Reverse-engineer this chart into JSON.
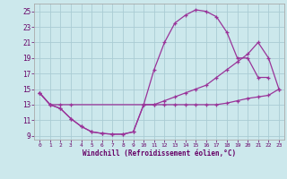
{
  "xlabel": "Windchill (Refroidissement éolien,°C)",
  "bg_color": "#cce8ec",
  "grid_color": "#aaccd4",
  "line_color": "#993399",
  "spine_color": "#aaaaaa",
  "label_color": "#660066",
  "xlim": [
    -0.5,
    23.5
  ],
  "ylim": [
    8.5,
    26.0
  ],
  "xticks": [
    0,
    1,
    2,
    3,
    4,
    5,
    6,
    7,
    8,
    9,
    10,
    11,
    12,
    13,
    14,
    15,
    16,
    17,
    18,
    19,
    20,
    21,
    22,
    23
  ],
  "yticks": [
    9,
    11,
    13,
    15,
    17,
    19,
    21,
    23,
    25
  ],
  "line1_x": [
    0,
    1,
    2,
    3,
    4,
    5,
    6,
    7,
    8,
    9,
    10,
    11,
    12,
    13,
    14,
    15,
    16,
    17,
    18,
    19,
    20,
    21,
    22,
    23
  ],
  "line1_y": [
    14.5,
    13.0,
    12.5,
    11.2,
    10.2,
    9.5,
    9.3,
    9.2,
    9.2,
    9.5,
    13.0,
    13.0,
    13.0,
    13.0,
    13.0,
    13.0,
    13.0,
    13.0,
    13.2,
    13.5,
    13.8,
    14.0,
    14.2,
    15.0
  ],
  "line2_x": [
    0,
    1,
    2,
    3,
    4,
    5,
    6,
    7,
    8,
    9,
    10,
    11,
    12,
    13,
    14,
    15,
    16,
    17,
    18,
    19,
    20,
    21,
    22
  ],
  "line2_y": [
    14.5,
    13.0,
    12.5,
    11.2,
    10.2,
    9.5,
    9.3,
    9.2,
    9.2,
    9.5,
    13.0,
    17.5,
    21.0,
    23.5,
    24.5,
    25.2,
    25.0,
    24.3,
    22.3,
    19.0,
    19.0,
    16.5,
    16.5
  ],
  "line3_x": [
    0,
    1,
    2,
    3,
    10,
    11,
    12,
    13,
    14,
    15,
    16,
    17,
    18,
    19,
    20,
    21,
    22,
    23
  ],
  "line3_y": [
    14.5,
    13.0,
    13.0,
    13.0,
    13.0,
    13.0,
    13.5,
    14.0,
    14.5,
    15.0,
    15.5,
    16.5,
    17.5,
    18.5,
    19.5,
    21.0,
    19.0,
    15.0
  ]
}
